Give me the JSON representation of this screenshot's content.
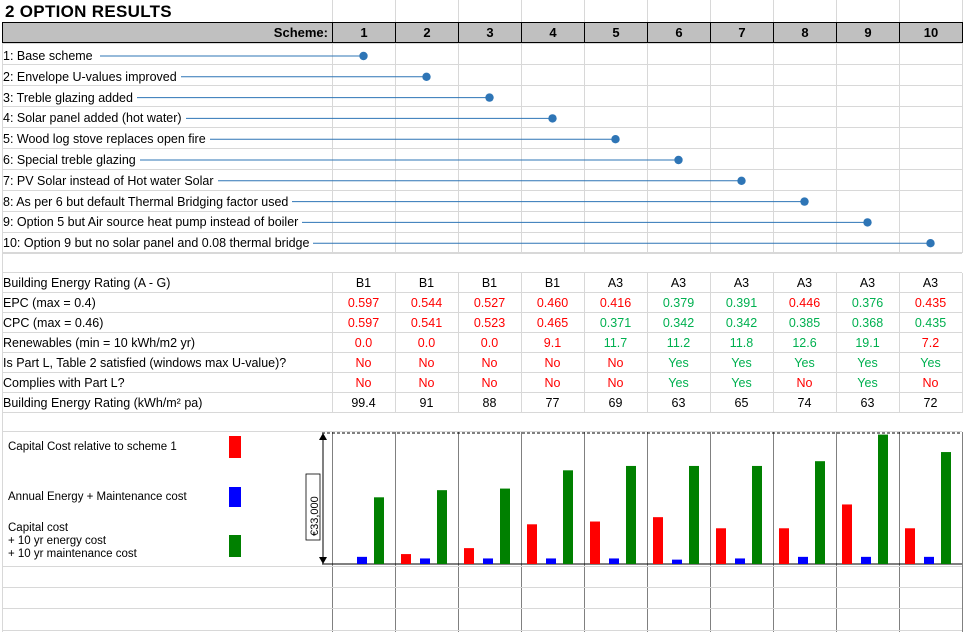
{
  "title": "2  OPTION RESULTS",
  "scheme_label": "Scheme:",
  "schemes": [
    "1",
    "2",
    "3",
    "4",
    "5",
    "6",
    "7",
    "8",
    "9",
    "10"
  ],
  "options": [
    "1: Base scheme",
    "2: Envelope U-values improved",
    "3: Treble glazing added",
    "4: Solar panel added (hot water)",
    "5: Wood log stove replaces open fire",
    "6: Special treble glazing",
    "7: PV Solar instead of Hot water Solar",
    "8: As per 6 but default Thermal Bridging factor used",
    "9: Option 5 but Air source heat pump instead of boiler",
    "10: Option 9 but no solar panel and 0.08 thermal bridge"
  ],
  "metrics": [
    {
      "label": "Building Energy Rating (A - G)",
      "values": [
        "B1",
        "B1",
        "B1",
        "B1",
        "A3",
        "A3",
        "A3",
        "A3",
        "A3",
        "A3"
      ],
      "colors": [
        "black",
        "black",
        "black",
        "black",
        "black",
        "black",
        "black",
        "black",
        "black",
        "black"
      ]
    },
    {
      "label": "EPC (max = 0.4)",
      "values": [
        "0.597",
        "0.544",
        "0.527",
        "0.460",
        "0.416",
        "0.379",
        "0.391",
        "0.446",
        "0.376",
        "0.435"
      ],
      "colors": [
        "red",
        "red",
        "red",
        "red",
        "red",
        "green",
        "green",
        "red",
        "green",
        "red"
      ]
    },
    {
      "label": "CPC (max = 0.46)",
      "values": [
        "0.597",
        "0.541",
        "0.523",
        "0.465",
        "0.371",
        "0.342",
        "0.342",
        "0.385",
        "0.368",
        "0.435"
      ],
      "colors": [
        "red",
        "red",
        "red",
        "red",
        "green",
        "green",
        "green",
        "green",
        "green",
        "green"
      ]
    },
    {
      "label": "Renewables (min = 10 kWh/m2 yr)",
      "values": [
        "0.0",
        "0.0",
        "0.0",
        "9.1",
        "11.7",
        "11.2",
        "11.8",
        "12.6",
        "19.1",
        "7.2"
      ],
      "colors": [
        "red",
        "red",
        "red",
        "red",
        "green",
        "green",
        "green",
        "green",
        "green",
        "red"
      ]
    },
    {
      "label": "Is Part L, Table 2 satisfied (windows max U-value)?",
      "values": [
        "No",
        "No",
        "No",
        "No",
        "No",
        "Yes",
        "Yes",
        "Yes",
        "Yes",
        "Yes"
      ],
      "colors": [
        "red",
        "red",
        "red",
        "red",
        "red",
        "green",
        "green",
        "green",
        "green",
        "green"
      ]
    },
    {
      "label": "Complies with Part L?",
      "values": [
        "No",
        "No",
        "No",
        "No",
        "No",
        "Yes",
        "Yes",
        "No",
        "Yes",
        "No"
      ],
      "colors": [
        "red",
        "red",
        "red",
        "red",
        "red",
        "green",
        "green",
        "red",
        "green",
        "red"
      ]
    },
    {
      "label": "Building Energy Rating (kWh/m² pa)",
      "values": [
        "99.4",
        "91",
        "88",
        "77",
        "69",
        "63",
        "65",
        "74",
        "63",
        "72"
      ],
      "colors": [
        "black",
        "black",
        "black",
        "black",
        "black",
        "black",
        "black",
        "black",
        "black",
        "black"
      ]
    }
  ],
  "legend": {
    "capital": "Capital Cost relative  to scheme 1",
    "annual": "Annual Energy + Maintenance cost",
    "total": "Capital cost\n + 10 yr energy cost\n + 10 yr maintenance  cost"
  },
  "colors": {
    "capital": "#ff0000",
    "annual": "#0000ff",
    "total": "#008000",
    "dot": "#2e75b6",
    "header_bg": "#c0c0c0"
  },
  "chart_data": {
    "type": "bar",
    "ylabel": "€33,000",
    "ylim": [
      0,
      33000
    ],
    "categories": [
      "1",
      "2",
      "3",
      "4",
      "5",
      "6",
      "7",
      "8",
      "9",
      "10"
    ],
    "series": [
      {
        "values": [
          0,
          2500,
          4000,
          10000,
          10700,
          11800,
          9000,
          9000,
          15000,
          9000
        ]
      },
      {
        "values": [
          1800,
          1400,
          1400,
          1400,
          1400,
          1100,
          1400,
          1800,
          1800,
          1800
        ]
      },
      {
        "values": [
          16800,
          18600,
          19000,
          23600,
          24700,
          24700,
          24700,
          25900,
          32600,
          28200
        ]
      }
    ]
  }
}
